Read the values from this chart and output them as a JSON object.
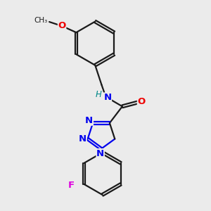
{
  "background_color": "#ebebeb",
  "bond_color": "#1a1a1a",
  "nitrogen_color": "#0000ee",
  "oxygen_color": "#ee0000",
  "fluorine_color": "#dd00dd",
  "h_color": "#008888",
  "line_width": 1.6,
  "figsize": [
    3.0,
    3.0
  ],
  "dpi": 100,
  "xlim": [
    2.0,
    8.5
  ],
  "ylim": [
    0.5,
    9.5
  ]
}
